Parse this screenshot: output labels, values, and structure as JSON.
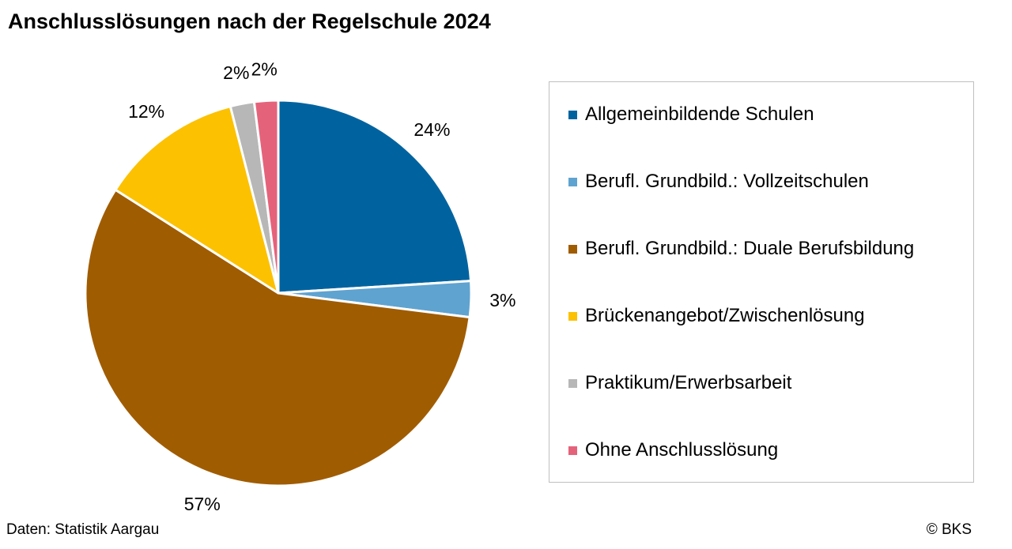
{
  "header": {
    "title": "Anschlusslösungen nach der Regelschule 2024"
  },
  "footer": {
    "source": "Daten: Statistik Aargau",
    "copyright": "© BKS"
  },
  "chart_data": {
    "type": "pie",
    "title": "Anschlusslösungen nach der Regelschule 2024",
    "unit": "%",
    "legend_position": "right",
    "slices": [
      {
        "label": "Allgemeinbildende Schulen",
        "value": 24,
        "display": "24%",
        "color": "#00639f"
      },
      {
        "label": "Berufl. Grundbild.: Vollzeitschulen",
        "value": 3,
        "display": "3%",
        "color": "#5fa3d0"
      },
      {
        "label": "Berufl. Grundbild.: Duale Berufsbildung",
        "value": 57,
        "display": "57%",
        "color": "#a05c00"
      },
      {
        "label": "Brückenangebot/Zwischenlösung",
        "value": 12,
        "display": "12%",
        "color": "#fcc100"
      },
      {
        "label": "Praktikum/Erwerbsarbeit",
        "value": 2,
        "display": "2%",
        "color": "#b7b7b7"
      },
      {
        "label": "Ohne Anschlusslösung",
        "value": 2,
        "display": "2%",
        "color": "#e5627b"
      }
    ]
  }
}
